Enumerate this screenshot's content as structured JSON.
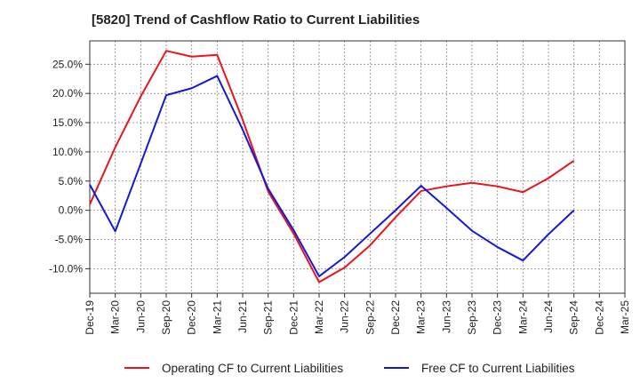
{
  "chart_data": {
    "type": "line",
    "title": "[5820]  Trend of Cashflow Ratio to Current Liabilities",
    "xlabel": "",
    "ylabel": "",
    "categories": [
      "Dec-19",
      "Mar-20",
      "Jun-20",
      "Sep-20",
      "Dec-20",
      "Mar-21",
      "Jun-21",
      "Sep-21",
      "Dec-21",
      "Mar-22",
      "Jun-22",
      "Sep-22",
      "Dec-22",
      "Mar-23",
      "Jun-23",
      "Sep-23",
      "Dec-23",
      "Mar-24",
      "Jun-24",
      "Sep-24",
      "Dec-24",
      "Mar-25"
    ],
    "ylim": [
      -14.2,
      29
    ],
    "yticks": [
      -10,
      -5,
      0,
      5,
      10,
      15,
      20,
      25
    ],
    "ytick_labels": [
      "-10.0%",
      "-5.0%",
      "0.0%",
      "5.0%",
      "10.0%",
      "15.0%",
      "20.0%",
      "25.0%"
    ],
    "grid": true,
    "legend_position": "bottom",
    "series": [
      {
        "name": "Operating CF to Current Liabilities",
        "color": "#e8141e",
        "values": [
          1.0,
          10.8,
          19.5,
          27.3,
          26.3,
          26.6,
          15.5,
          3.2,
          -4.0,
          -12.3,
          -9.8,
          -6.0,
          -1.2,
          3.3,
          4.1,
          4.7,
          4.1,
          3.1,
          5.5,
          8.5,
          null,
          null
        ]
      },
      {
        "name": "Free CF to Current Liabilities",
        "color": "#1419d8",
        "values": [
          4.4,
          -3.6,
          8.0,
          19.7,
          20.9,
          23.0,
          13.8,
          3.7,
          -3.4,
          -11.3,
          -8.0,
          -4.0,
          0.0,
          4.2,
          0.4,
          -3.5,
          -6.3,
          -8.6,
          -4.1,
          0.0,
          null,
          null
        ]
      }
    ]
  }
}
